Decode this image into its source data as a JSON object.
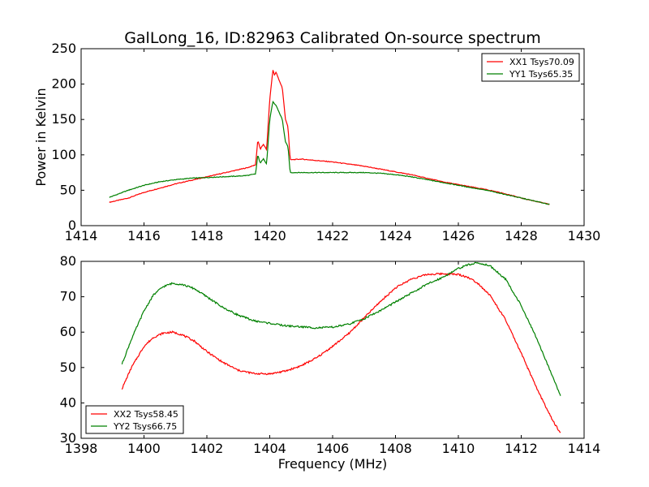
{
  "figure": {
    "title": "GalLong_16, ID:82963 Calibrated On-source spectrum",
    "ylabel": "Power in Kelvin",
    "xlabel": "Frequency (MHz)"
  },
  "chart_data": [
    {
      "type": "line",
      "title": "GalLong_16, ID:82963 Calibrated On-source spectrum",
      "xlabel": "",
      "ylabel": "Power in Kelvin",
      "xlim": [
        1414,
        1430
      ],
      "ylim": [
        0,
        250
      ],
      "xticks": [
        1414,
        1416,
        1418,
        1420,
        1422,
        1424,
        1426,
        1428,
        1430
      ],
      "yticks": [
        0,
        50,
        100,
        150,
        200,
        250
      ],
      "grid": false,
      "legend_position": "top-right",
      "series": [
        {
          "name": "XX1 Tsys70.09",
          "color": "#ff0000",
          "x": [
            1414.9,
            1415.5,
            1416.0,
            1416.5,
            1417.0,
            1417.5,
            1418.0,
            1418.5,
            1419.0,
            1419.3,
            1419.55,
            1419.62,
            1419.7,
            1419.8,
            1419.9,
            1420.0,
            1420.1,
            1420.15,
            1420.2,
            1420.3,
            1420.4,
            1420.5,
            1420.58,
            1420.65,
            1421.0,
            1421.5,
            1422.0,
            1422.5,
            1423.0,
            1423.5,
            1424.0,
            1424.5,
            1425.0,
            1425.5,
            1426.0,
            1426.5,
            1427.0,
            1427.5,
            1428.0,
            1428.5,
            1428.9
          ],
          "values": [
            33,
            39,
            47,
            53,
            59,
            64,
            69,
            74,
            79,
            82,
            86,
            121,
            108,
            115,
            107,
            178,
            220,
            213,
            217,
            205,
            195,
            150,
            140,
            93,
            94,
            92,
            90,
            87,
            84,
            80,
            76,
            72,
            67,
            62,
            58,
            54,
            50,
            45,
            39,
            34,
            30
          ]
        },
        {
          "name": "YY1 Tsys65.35",
          "color": "#008000",
          "x": [
            1414.9,
            1415.5,
            1416.0,
            1416.5,
            1417.0,
            1417.5,
            1418.0,
            1418.5,
            1419.0,
            1419.3,
            1419.55,
            1419.62,
            1419.7,
            1419.8,
            1419.9,
            1420.0,
            1420.1,
            1420.15,
            1420.2,
            1420.3,
            1420.4,
            1420.5,
            1420.58,
            1420.65,
            1421.0,
            1421.5,
            1422.0,
            1422.5,
            1423.0,
            1423.5,
            1424.0,
            1424.5,
            1425.0,
            1425.5,
            1426.0,
            1426.5,
            1427.0,
            1427.5,
            1428.0,
            1428.5,
            1428.9
          ],
          "values": [
            40,
            50,
            57,
            62,
            65,
            67,
            68,
            69,
            70,
            71,
            73,
            100,
            88,
            95,
            87,
            150,
            175,
            172,
            170,
            160,
            150,
            118,
            112,
            75,
            75,
            75,
            75,
            75,
            75,
            74,
            72,
            69,
            65,
            61,
            57,
            53,
            49,
            44,
            39,
            34,
            30
          ]
        }
      ]
    },
    {
      "type": "line",
      "title": "",
      "xlabel": "Frequency (MHz)",
      "ylabel": "",
      "xlim": [
        1398,
        1414
      ],
      "ylim": [
        30,
        80
      ],
      "xticks": [
        1398,
        1400,
        1402,
        1404,
        1406,
        1408,
        1410,
        1412,
        1414
      ],
      "yticks": [
        30,
        40,
        50,
        60,
        70,
        80
      ],
      "grid": false,
      "legend_position": "bottom-left",
      "series": [
        {
          "name": "XX2 Tsys58.45",
          "color": "#ff0000",
          "x": [
            1399.3,
            1399.6,
            1400.0,
            1400.3,
            1400.6,
            1400.9,
            1401.2,
            1401.6,
            1402.0,
            1402.5,
            1403.0,
            1403.5,
            1404.0,
            1404.5,
            1405.0,
            1405.5,
            1406.0,
            1406.5,
            1407.0,
            1407.5,
            1408.0,
            1408.5,
            1409.0,
            1409.5,
            1410.0,
            1410.3,
            1410.6,
            1411.0,
            1411.5,
            1412.0,
            1412.5,
            1413.0,
            1413.25
          ],
          "values": [
            44,
            50,
            56,
            58.5,
            59.7,
            60,
            59.3,
            57.5,
            54.5,
            51.5,
            49.2,
            48.3,
            48.2,
            49,
            50.5,
            52.8,
            56,
            59.5,
            64,
            68.5,
            72.5,
            75,
            76.3,
            76.5,
            76.3,
            75.5,
            74,
            70.5,
            63.5,
            54,
            44,
            35,
            31.5
          ]
        },
        {
          "name": "YY2 Tsys66.75",
          "color": "#008000",
          "x": [
            1399.3,
            1399.6,
            1400.0,
            1400.3,
            1400.6,
            1400.9,
            1401.2,
            1401.6,
            1402.0,
            1402.5,
            1403.0,
            1403.5,
            1404.0,
            1404.5,
            1405.0,
            1405.5,
            1406.0,
            1406.5,
            1407.0,
            1407.5,
            1408.0,
            1408.5,
            1409.0,
            1409.5,
            1410.0,
            1410.3,
            1410.6,
            1411.0,
            1411.5,
            1412.0,
            1412.5,
            1413.0,
            1413.25
          ],
          "values": [
            51,
            58,
            66,
            70.5,
            72.8,
            73.8,
            73.5,
            72.3,
            70,
            67,
            64.8,
            63.2,
            62.5,
            61.8,
            61.5,
            61.2,
            61.4,
            62.2,
            63.8,
            66,
            68.5,
            71,
            73.5,
            75.5,
            78,
            79,
            79.6,
            78.8,
            75,
            67.5,
            58,
            47.5,
            42
          ]
        }
      ]
    }
  ]
}
